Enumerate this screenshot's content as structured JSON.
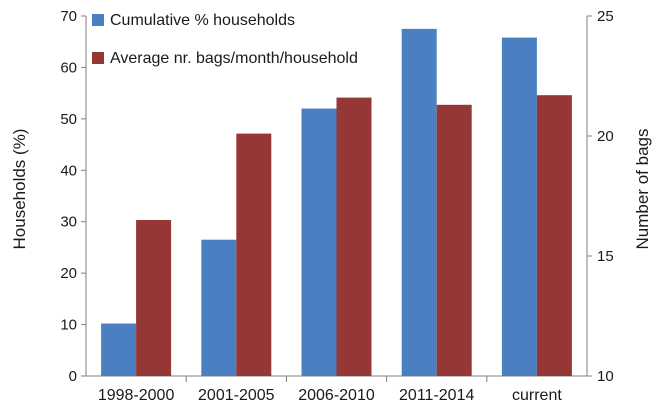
{
  "chart_data": {
    "type": "bar",
    "categories": [
      "1998-2000",
      "2001-2005",
      "2006-2010",
      "2011-2014",
      "current"
    ],
    "series": [
      {
        "name": "Cumulative % households",
        "axis": "left",
        "color": "#4a7fc1",
        "values": [
          10.2,
          26.5,
          52.0,
          67.5,
          65.8
        ]
      },
      {
        "name": "Average nr. bags/month/household",
        "axis": "right",
        "color": "#953735",
        "values": [
          16.5,
          20.1,
          21.6,
          21.3,
          21.7
        ]
      }
    ],
    "y_left": {
      "label": "Households (%)",
      "range": [
        0,
        70
      ],
      "ticks": [
        "0",
        "10",
        "20",
        "30",
        "40",
        "50",
        "60",
        "70"
      ]
    },
    "y_right": {
      "label": "Number of bags",
      "range": [
        10,
        25
      ],
      "ticks": [
        "10",
        "15",
        "20",
        "25"
      ]
    },
    "xlabel": "",
    "title": "",
    "grid": false,
    "legend_position": "top-left"
  }
}
